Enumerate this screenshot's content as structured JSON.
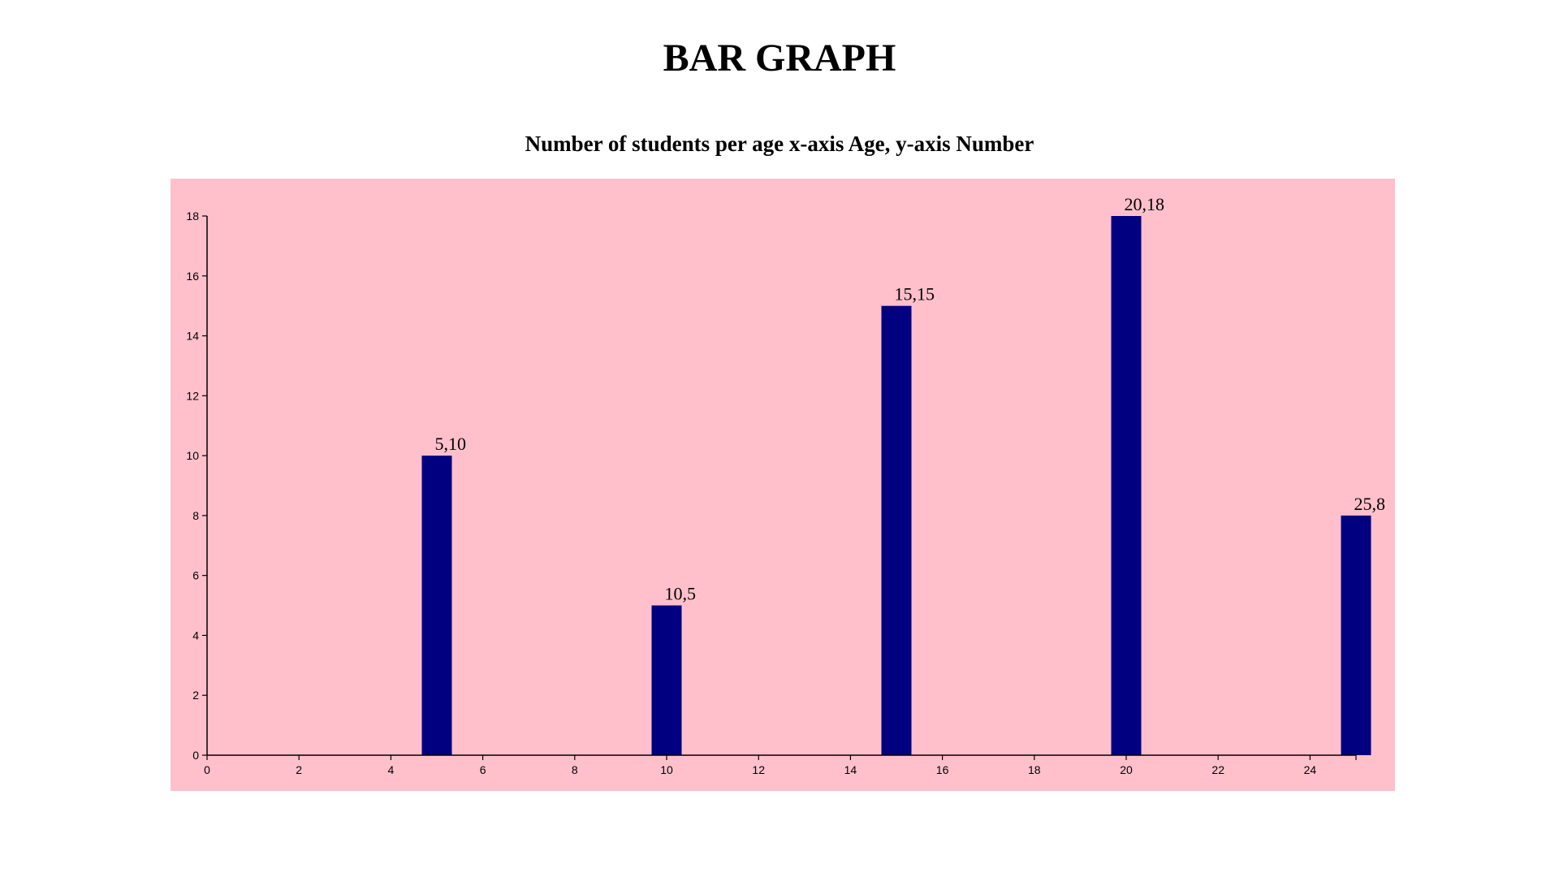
{
  "page": {
    "title": "BAR GRAPH"
  },
  "chart_data": {
    "type": "bar",
    "subtitle": "Number of students per age x-axis Age, y-axis Number",
    "x": [
      5,
      10,
      15,
      20,
      25
    ],
    "values": [
      10,
      5,
      15,
      18,
      8
    ],
    "data_labels": [
      "5,10",
      "10,5",
      "15,15",
      "20,18",
      "25,8"
    ],
    "xlim": [
      0,
      25
    ],
    "ylim": [
      0,
      18
    ],
    "x_ticks": [
      0,
      2,
      4,
      6,
      8,
      10,
      12,
      14,
      16,
      18,
      20,
      22,
      24
    ],
    "y_ticks": [
      0,
      2,
      4,
      6,
      8,
      10,
      12,
      14,
      16,
      18
    ],
    "grid": false,
    "legend": "none",
    "colors": {
      "plot_background": "#ffc0cb",
      "bar": "#000080",
      "axis": "#000000"
    }
  }
}
